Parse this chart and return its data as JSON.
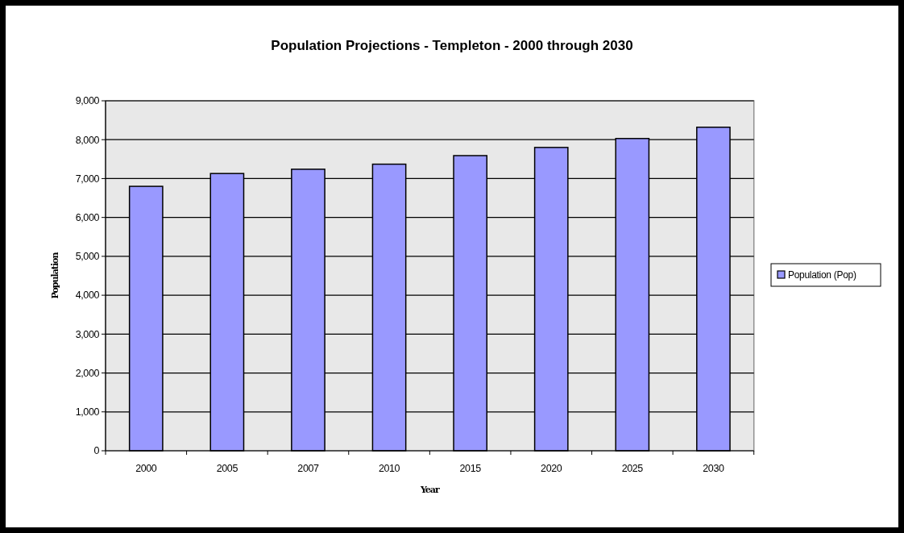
{
  "chart_data": {
    "type": "bar",
    "title": "Population Projections - Templeton - 2000 through 2030",
    "xlabel": "Year",
    "ylabel": "Population",
    "categories": [
      "2000",
      "2005",
      "2007",
      "2010",
      "2015",
      "2020",
      "2025",
      "2030"
    ],
    "series": [
      {
        "name": "Population (Pop)",
        "color": "#9999ff",
        "values": [
          6800,
          7130,
          7240,
          7370,
          7590,
          7800,
          8030,
          8320
        ]
      }
    ],
    "ylim": [
      0,
      9000
    ],
    "yticks": [
      0,
      {
        "value": 1000,
        "label": "1,000"
      },
      {
        "value": 2000,
        "label": "2,000"
      },
      {
        "value": 3000,
        "label": "3,000"
      },
      {
        "value": 4000,
        "label": "4,000"
      },
      {
        "value": 5000,
        "label": "5,000"
      },
      {
        "value": 6000,
        "label": "6,000"
      },
      {
        "value": 7000,
        "label": "7,000"
      },
      {
        "value": 8000,
        "label": "8,000"
      },
      {
        "value": 9000,
        "label": "9,000"
      }
    ],
    "grid": "y",
    "legend": "right"
  }
}
